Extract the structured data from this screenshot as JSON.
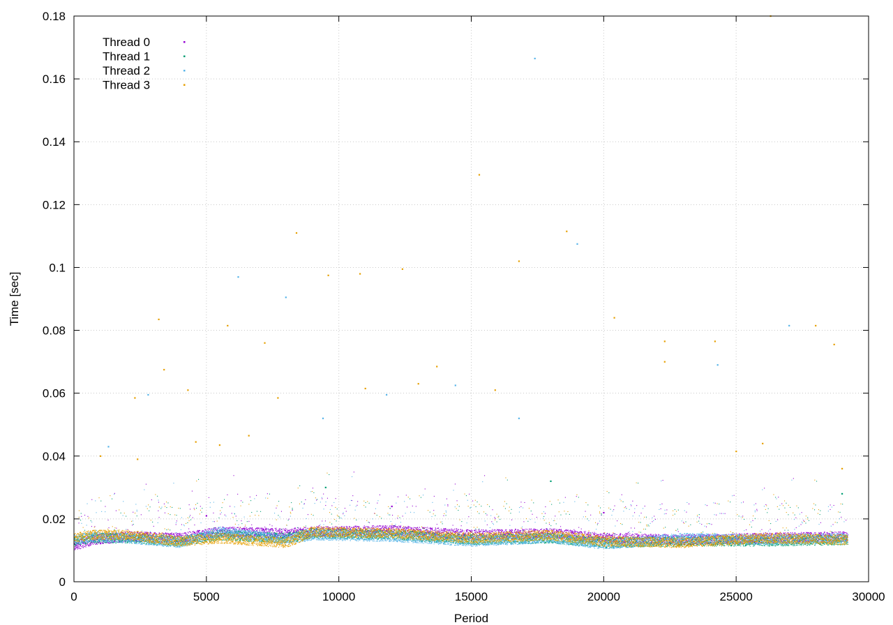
{
  "chart_data": {
    "type": "scatter",
    "title": "",
    "xlabel": "Period",
    "ylabel": "Time [sec]",
    "xlim": [
      0,
      30000
    ],
    "ylim": [
      0,
      0.18
    ],
    "x_ticks": [
      0,
      5000,
      10000,
      15000,
      20000,
      25000,
      30000
    ],
    "x_tick_labels": [
      "0",
      "5000",
      "10000",
      "15000",
      "20000",
      "25000",
      "30000"
    ],
    "y_ticks": [
      0,
      0.02,
      0.04,
      0.06,
      0.08,
      0.1,
      0.12,
      0.14,
      0.16,
      0.18
    ],
    "y_tick_labels": [
      "0",
      "0.02",
      "0.04",
      "0.06",
      "0.08",
      "0.1",
      "0.12",
      "0.14",
      "0.16",
      "0.18"
    ],
    "grid": true,
    "legend_position": "top-left",
    "x_max_period": 29200,
    "series": [
      {
        "name": "Thread 0",
        "color": "#9400d3",
        "baseline": [
          [
            0,
            0.0115
          ],
          [
            700,
            0.0135
          ],
          [
            2000,
            0.0145
          ],
          [
            4000,
            0.014
          ],
          [
            5500,
            0.016
          ],
          [
            8000,
            0.0155
          ],
          [
            9000,
            0.016
          ],
          [
            12000,
            0.0165
          ],
          [
            15000,
            0.015
          ],
          [
            18000,
            0.0155
          ],
          [
            20000,
            0.014
          ],
          [
            23000,
            0.0135
          ],
          [
            26000,
            0.014
          ],
          [
            29200,
            0.0145
          ]
        ],
        "outliers": [
          [
            5000,
            0.021
          ],
          [
            12000,
            0.024
          ],
          [
            20000,
            0.022
          ]
        ]
      },
      {
        "name": "Thread 1",
        "color": "#009e73",
        "baseline": [
          [
            0,
            0.013
          ],
          [
            700,
            0.014
          ],
          [
            2000,
            0.014
          ],
          [
            4000,
            0.013
          ],
          [
            5500,
            0.015
          ],
          [
            8000,
            0.014
          ],
          [
            9000,
            0.0155
          ],
          [
            12000,
            0.015
          ],
          [
            15000,
            0.0135
          ],
          [
            18000,
            0.014
          ],
          [
            20000,
            0.0125
          ],
          [
            23000,
            0.013
          ],
          [
            26000,
            0.013
          ],
          [
            29200,
            0.0135
          ]
        ],
        "outliers": [
          [
            9500,
            0.03
          ],
          [
            18000,
            0.032
          ],
          [
            29000,
            0.028
          ]
        ]
      },
      {
        "name": "Thread 2",
        "color": "#56b4e9",
        "baseline": [
          [
            0,
            0.0135
          ],
          [
            700,
            0.0145
          ],
          [
            2000,
            0.014
          ],
          [
            4000,
            0.0125
          ],
          [
            5500,
            0.016
          ],
          [
            8000,
            0.0135
          ],
          [
            9000,
            0.015
          ],
          [
            12000,
            0.0145
          ],
          [
            15000,
            0.013
          ],
          [
            18000,
            0.014
          ],
          [
            20000,
            0.012
          ],
          [
            23000,
            0.014
          ],
          [
            26000,
            0.0135
          ],
          [
            29200,
            0.014
          ]
        ],
        "outliers": [
          [
            1300,
            0.043
          ],
          [
            9400,
            0.052
          ],
          [
            16800,
            0.052
          ],
          [
            19000,
            0.1075
          ],
          [
            24300,
            0.069
          ],
          [
            27000,
            0.0815
          ],
          [
            17400,
            0.1665
          ],
          [
            6200,
            0.097
          ],
          [
            8000,
            0.0905
          ],
          [
            2800,
            0.0595
          ],
          [
            14400,
            0.0625
          ],
          [
            11800,
            0.0595
          ]
        ]
      },
      {
        "name": "Thread 3",
        "color": "#e69f00",
        "baseline": [
          [
            0,
            0.014
          ],
          [
            700,
            0.015
          ],
          [
            2000,
            0.015
          ],
          [
            4000,
            0.013
          ],
          [
            5500,
            0.014
          ],
          [
            8000,
            0.0125
          ],
          [
            9000,
            0.016
          ],
          [
            12000,
            0.0155
          ],
          [
            15000,
            0.014
          ],
          [
            18000,
            0.015
          ],
          [
            20000,
            0.013
          ],
          [
            23000,
            0.0125
          ],
          [
            26000,
            0.014
          ],
          [
            29200,
            0.0135
          ]
        ],
        "outliers": [
          [
            3200,
            0.0835
          ],
          [
            8400,
            0.111
          ],
          [
            9600,
            0.0975
          ],
          [
            10800,
            0.098
          ],
          [
            15300,
            0.1295
          ],
          [
            16800,
            0.102
          ],
          [
            18600,
            0.1115
          ],
          [
            20400,
            0.084
          ],
          [
            26300,
            0.18
          ],
          [
            28700,
            0.0755
          ],
          [
            2300,
            0.0585
          ],
          [
            3400,
            0.0675
          ],
          [
            4300,
            0.061
          ],
          [
            5800,
            0.0815
          ],
          [
            7200,
            0.076
          ],
          [
            6600,
            0.0465
          ],
          [
            13700,
            0.0685
          ],
          [
            22300,
            0.0765
          ],
          [
            22300,
            0.07
          ],
          [
            24200,
            0.0765
          ],
          [
            12400,
            0.0995
          ],
          [
            26000,
            0.044
          ],
          [
            2400,
            0.039
          ],
          [
            1000,
            0.04
          ],
          [
            4600,
            0.0445
          ],
          [
            5500,
            0.0435
          ],
          [
            7700,
            0.0585
          ],
          [
            11000,
            0.0615
          ],
          [
            13000,
            0.063
          ],
          [
            15900,
            0.061
          ],
          [
            25000,
            0.0415
          ],
          [
            28000,
            0.0815
          ],
          [
            29000,
            0.036
          ]
        ]
      }
    ]
  }
}
